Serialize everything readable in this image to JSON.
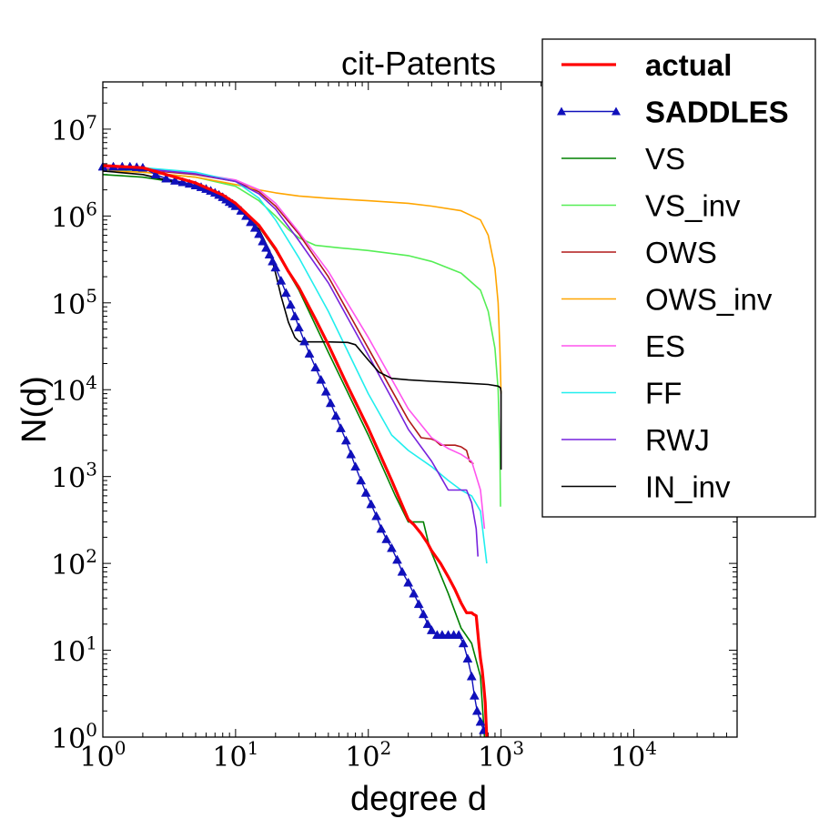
{
  "chart_data": {
    "type": "line",
    "title": "cit-Patents",
    "xlabel": "degree d",
    "ylabel": "N(d)",
    "xscale": "log",
    "yscale": "log",
    "xlim": [
      1,
      60000
    ],
    "ylim": [
      1,
      35000000
    ],
    "legend_position": "top-right",
    "xticks": [
      {
        "value": 1,
        "base": "10",
        "exp": "0"
      },
      {
        "value": 10,
        "base": "10",
        "exp": "1"
      },
      {
        "value": 100,
        "base": "10",
        "exp": "2"
      },
      {
        "value": 1000,
        "base": "10",
        "exp": "3"
      },
      {
        "value": 10000,
        "base": "10",
        "exp": "4"
      }
    ],
    "yticks": [
      {
        "value": 1,
        "base": "10",
        "exp": "0"
      },
      {
        "value": 10,
        "base": "10",
        "exp": "1"
      },
      {
        "value": 100,
        "base": "10",
        "exp": "2"
      },
      {
        "value": 1000,
        "base": "10",
        "exp": "3"
      },
      {
        "value": 10000,
        "base": "10",
        "exp": "4"
      },
      {
        "value": 100000,
        "base": "10",
        "exp": "5"
      },
      {
        "value": 1000000,
        "base": "10",
        "exp": "6"
      },
      {
        "value": 10000000,
        "base": "10",
        "exp": "7"
      }
    ],
    "series": [
      {
        "name": "VS",
        "color": "#008000",
        "width": 1.6,
        "x": [
          1,
          2,
          3,
          5,
          8,
          10,
          15,
          20,
          30,
          50,
          100,
          160,
          200,
          260,
          290,
          400,
          500,
          600,
          700,
          750
        ],
        "y": [
          3000000,
          2800000,
          2550000,
          2150000,
          1600000,
          1350000,
          750000,
          400000,
          140000,
          27000,
          3000,
          600,
          300,
          300,
          150,
          45,
          18,
          12,
          5,
          1
        ]
      },
      {
        "name": "VS_inv",
        "color": "#55ee55",
        "width": 1.6,
        "x": [
          1,
          2,
          5,
          10,
          15,
          20,
          25,
          30,
          40,
          60,
          100,
          200,
          300,
          500,
          700,
          800,
          900,
          950,
          980,
          990
        ],
        "y": [
          3400000,
          3200000,
          2800000,
          2200000,
          1500000,
          1000000,
          700000,
          560000,
          460000,
          430000,
          400000,
          350000,
          300000,
          220000,
          140000,
          80000,
          30000,
          10000,
          2000,
          450
        ]
      },
      {
        "name": "OWS",
        "color": "#b01818",
        "width": 1.6,
        "x": [
          1,
          2,
          5,
          10,
          15,
          20,
          30,
          50,
          100,
          200,
          250,
          300,
          320,
          350,
          400,
          450,
          500,
          550,
          580,
          620
        ],
        "y": [
          3500000,
          3400000,
          3000000,
          2500000,
          1900000,
          1300000,
          620000,
          200000,
          30000,
          4500,
          2800,
          2700,
          2600,
          2300,
          2300,
          2300,
          2200,
          2000,
          1500,
          1400
        ]
      },
      {
        "name": "OWS_inv",
        "color": "#ffa500",
        "width": 1.6,
        "x": [
          1,
          2,
          5,
          10,
          15,
          20,
          30,
          50,
          100,
          200,
          300,
          500,
          700,
          800,
          900,
          950,
          980,
          1000
        ],
        "y": [
          3300000,
          3200000,
          2800000,
          2300000,
          2000000,
          1850000,
          1700000,
          1600000,
          1500000,
          1400000,
          1300000,
          1150000,
          900000,
          600000,
          250000,
          100000,
          30000,
          9000
        ]
      },
      {
        "name": "ES",
        "color": "#ff55ee",
        "width": 1.6,
        "x": [
          1,
          2,
          5,
          10,
          15,
          20,
          30,
          50,
          100,
          200,
          300,
          400,
          500,
          600,
          700,
          750
        ],
        "y": [
          3600000,
          3450000,
          3100000,
          2600000,
          2000000,
          1400000,
          650000,
          230000,
          40000,
          6000,
          2800,
          2100,
          1800,
          1500,
          700,
          250
        ]
      },
      {
        "name": "FF",
        "color": "#22eeee",
        "width": 1.6,
        "x": [
          1,
          2,
          5,
          10,
          15,
          20,
          30,
          50,
          100,
          150,
          200,
          300,
          400,
          500,
          600,
          700,
          780
        ],
        "y": [
          3800000,
          3600000,
          3200000,
          2500000,
          1600000,
          900000,
          330000,
          80000,
          9000,
          3000,
          2000,
          1300,
          900,
          700,
          600,
          400,
          100
        ]
      },
      {
        "name": "RWJ",
        "color": "#7722dd",
        "width": 1.6,
        "x": [
          1,
          2,
          5,
          10,
          15,
          20,
          30,
          50,
          100,
          150,
          200,
          300,
          350,
          400,
          450,
          500,
          550,
          600,
          650,
          670
        ],
        "y": [
          3700000,
          3500000,
          3050000,
          2500000,
          1800000,
          1200000,
          520000,
          170000,
          25000,
          8000,
          3500,
          1500,
          1000,
          700,
          700,
          700,
          700,
          500,
          250,
          120
        ]
      },
      {
        "name": "IN_inv",
        "color": "#000000",
        "width": 1.6,
        "x": [
          1,
          2,
          3,
          5,
          8,
          10,
          12,
          15,
          18,
          20,
          22,
          25,
          28,
          30,
          35,
          50,
          70,
          80,
          100,
          120,
          150,
          200,
          300,
          500,
          800,
          950,
          990,
          1000,
          1000
        ],
        "y": [
          3300000,
          3000000,
          2600000,
          2200000,
          1700000,
          1300000,
          1000000,
          700000,
          400000,
          220000,
          120000,
          60000,
          40000,
          36000,
          35500,
          35500,
          35000,
          33000,
          22000,
          16000,
          13500,
          13000,
          12500,
          12000,
          11500,
          11000,
          10500,
          9500,
          1200
        ]
      },
      {
        "name": "SADDLES",
        "color": "#1010bb",
        "width": 1.4,
        "marker": "triangle",
        "x": [
          1,
          1.2,
          1.4,
          1.6,
          1.8,
          2,
          2.5,
          3,
          3.5,
          4,
          4.5,
          5,
          5.5,
          6,
          6.5,
          7,
          7.5,
          8,
          8.5,
          9,
          9.5,
          10,
          11,
          12,
          13,
          14,
          15,
          16,
          17,
          18,
          19,
          20,
          22,
          24,
          26,
          28,
          30,
          33,
          36,
          40,
          44,
          48,
          52,
          57,
          62,
          68,
          74,
          80,
          88,
          96,
          105,
          115,
          125,
          137,
          150,
          165,
          180,
          200,
          220,
          240,
          260,
          280,
          300,
          330,
          360,
          400,
          440,
          480,
          520,
          560,
          600,
          630,
          660,
          700,
          740
        ],
        "y": [
          3700000,
          3700000,
          3700000,
          3700000,
          3650000,
          3600000,
          3000000,
          2700000,
          2550000,
          2450000,
          2350000,
          2250000,
          2150000,
          2050000,
          1950000,
          1850000,
          1750000,
          1650000,
          1550000,
          1450000,
          1380000,
          1300000,
          1150000,
          1000000,
          850000,
          730000,
          620000,
          510000,
          430000,
          360000,
          300000,
          255000,
          180000,
          130000,
          95000,
          70000,
          52000,
          36000,
          26000,
          18000,
          13000,
          9500,
          7000,
          5000,
          3600,
          2600,
          1800,
          1300,
          900,
          650,
          480,
          350,
          250,
          190,
          150,
          110,
          80,
          60,
          45,
          34,
          26,
          20,
          17,
          15,
          15,
          15,
          15,
          15,
          12,
          8,
          5,
          3,
          2,
          1.5,
          1.2
        ]
      },
      {
        "name": "actual",
        "color": "#ff0000",
        "width": 3.2,
        "x": [
          1,
          2,
          3,
          5,
          8,
          10,
          15,
          20,
          25,
          30,
          40,
          50,
          70,
          100,
          150,
          200,
          220,
          250,
          280,
          300,
          350,
          400,
          450,
          500,
          550,
          600,
          620,
          650,
          680,
          700,
          720,
          740,
          760,
          770,
          780
        ],
        "y": [
          3800000,
          3600000,
          3000000,
          2400000,
          1750000,
          1400000,
          780000,
          420000,
          230000,
          150000,
          65000,
          33000,
          11000,
          3600,
          900,
          320,
          280,
          220,
          170,
          140,
          100,
          70,
          50,
          35,
          27,
          27,
          26,
          25,
          12,
          8,
          6,
          4,
          2.5,
          1.5,
          1
        ]
      }
    ]
  }
}
